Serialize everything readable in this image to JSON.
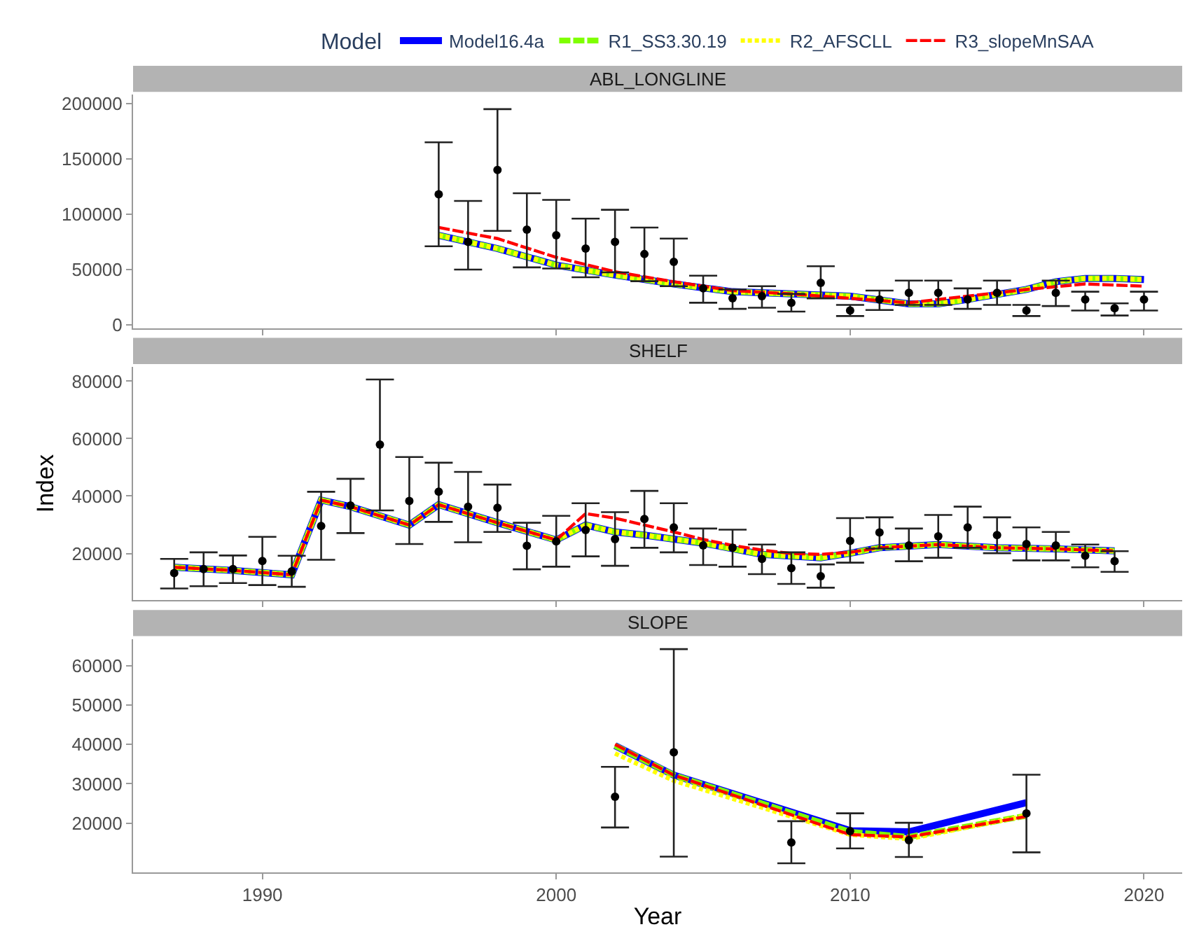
{
  "chart_data": [
    {
      "type": "line",
      "title": "ABL_LONGLINE",
      "xlim": [
        1985.6,
        2021.3
      ],
      "xticks": [
        1990,
        2000,
        2010,
        2020
      ],
      "ylim": [
        -3000,
        208000
      ],
      "yticks": [
        0,
        50000,
        100000,
        150000,
        200000
      ],
      "tick_labels": "y",
      "legend": "top",
      "legend_title": "Model",
      "series": [
        {
          "type": "scatter",
          "marker": "circle",
          "color": "#000000",
          "x": [
            1996,
            1997,
            1998,
            1999,
            2000,
            2001,
            2002,
            2003,
            2004,
            2005,
            2006,
            2007,
            2008,
            2009,
            2010,
            2011,
            2012,
            2013,
            2014,
            2015,
            2016,
            2017,
            2018,
            2019,
            2020
          ],
          "values": [
            118000,
            75000,
            140000,
            86000,
            81000,
            69000,
            75000,
            64000,
            57000,
            33000,
            24000,
            26000,
            20000,
            38000,
            13000,
            23000,
            29000,
            29000,
            23000,
            29000,
            13000,
            29000,
            23000,
            15000,
            23000
          ],
          "errors": [
            [
              71000,
              165000
            ],
            [
              50000,
              112000
            ],
            [
              85000,
              195000
            ],
            [
              52000,
              119000
            ],
            [
              51000,
              113000
            ],
            [
              43000,
              96000
            ],
            [
              47500,
              104000
            ],
            [
              39500,
              88000
            ],
            [
              35000,
              78000
            ],
            [
              20000,
              44500
            ],
            [
              14500,
              32000
            ],
            [
              15500,
              35000
            ],
            [
              12000,
              28000
            ],
            [
              24000,
              53000
            ],
            [
              8000,
              18000
            ],
            [
              13500,
              31000
            ],
            [
              18000,
              40000
            ],
            [
              18000,
              40000
            ],
            [
              14500,
              33000
            ],
            [
              18000,
              40000
            ],
            [
              8000,
              18000
            ],
            [
              17000,
              40000
            ],
            [
              13000,
              30000
            ],
            [
              8500,
              19500
            ],
            [
              13000,
              30000
            ]
          ]
        },
        {
          "name": "Model16.4a",
          "color": "#0000ff",
          "line_style": "solid",
          "x": [
            1996,
            1998,
            2000,
            2002,
            2004,
            2006,
            2008,
            2010,
            2012,
            2013,
            2014,
            2016,
            2017,
            2018,
            2019,
            2020
          ],
          "values": [
            81000,
            69000,
            54000,
            45000,
            37000,
            30000,
            28000,
            26000,
            19000,
            19000,
            23000,
            32000,
            39000,
            42000,
            42000,
            41000
          ]
        },
        {
          "name": "R1_SS3.30.19",
          "color": "#7fff00",
          "line_style": "dashed",
          "x": [
            1996,
            1998,
            2000,
            2002,
            2004,
            2006,
            2008,
            2010,
            2012,
            2013,
            2014,
            2016,
            2017,
            2018,
            2019,
            2020
          ],
          "values": [
            81000,
            69000,
            54000,
            45000,
            37000,
            30000,
            28000,
            26000,
            19000,
            19000,
            23000,
            32000,
            39000,
            42000,
            42000,
            41000
          ]
        },
        {
          "name": "R2_AFSCLL",
          "color": "#ffff00",
          "line_style": "dotted",
          "x": [
            1996,
            1998,
            2000,
            2002,
            2004,
            2006,
            2008,
            2010,
            2012,
            2013,
            2014,
            2016,
            2017,
            2018,
            2019,
            2020
          ],
          "values": [
            81000,
            69000,
            54000,
            45000,
            37000,
            30000,
            28000,
            26000,
            19000,
            19000,
            23000,
            32000,
            39000,
            42000,
            42000,
            41000
          ]
        },
        {
          "name": "R3_slopeMnSAA",
          "color": "#ff0000",
          "line_style": "dashed",
          "x": [
            1996,
            1998,
            2000,
            2002,
            2004,
            2006,
            2008,
            2010,
            2012,
            2014,
            2016,
            2018,
            2020
          ],
          "values": [
            88000,
            78000,
            61000,
            48000,
            39000,
            31000,
            28000,
            24000,
            20000,
            26000,
            32000,
            37000,
            35000
          ]
        }
      ]
    },
    {
      "type": "line",
      "title": "SHELF",
      "ylabel": "Index",
      "xlim": [
        1985.6,
        2021.3
      ],
      "xticks": [
        1990,
        2000,
        2010,
        2020
      ],
      "ylim": [
        3700,
        85000
      ],
      "yticks": [
        20000,
        40000,
        60000,
        80000
      ],
      "tick_labels": "y",
      "series": [
        {
          "type": "scatter",
          "marker": "circle",
          "color": "#000000",
          "x": [
            1987,
            1988,
            1989,
            1990,
            1991,
            1992,
            1993,
            1994,
            1995,
            1996,
            1997,
            1998,
            1999,
            2000,
            2001,
            2002,
            2003,
            2004,
            2005,
            2006,
            2007,
            2008,
            2009,
            2010,
            2011,
            2012,
            2013,
            2014,
            2015,
            2016,
            2017,
            2018,
            2019
          ],
          "values": [
            13200,
            14600,
            14600,
            17400,
            13800,
            29600,
            36700,
            57900,
            38300,
            41500,
            36300,
            35900,
            22700,
            24200,
            28200,
            25000,
            32000,
            29100,
            22800,
            22000,
            18100,
            14900,
            12100,
            24400,
            27300,
            22800,
            26000,
            29100,
            26400,
            23300,
            22800,
            19200,
            17300
          ],
          "errors": [
            [
              7800,
              18100
            ],
            [
              8600,
              20400
            ],
            [
              9700,
              19300
            ],
            [
              9000,
              25800
            ],
            [
              8400,
              19200
            ],
            [
              17800,
              41500
            ],
            [
              27100,
              46000
            ],
            [
              35000,
              80600
            ],
            [
              23300,
              53600
            ],
            [
              31000,
              51600
            ],
            [
              23900,
              48400
            ],
            [
              27500,
              44000
            ],
            [
              14500,
              30700
            ],
            [
              15400,
              33100
            ],
            [
              19000,
              37500
            ],
            [
              15700,
              34400
            ],
            [
              22000,
              41800
            ],
            [
              20400,
              37500
            ],
            [
              16000,
              28700
            ],
            [
              15400,
              28300
            ],
            [
              12800,
              23100
            ],
            [
              9400,
              20400
            ],
            [
              8100,
              16200
            ],
            [
              16800,
              32300
            ],
            [
              21700,
              32600
            ],
            [
              17300,
              28700
            ],
            [
              18500,
              33400
            ],
            [
              22000,
              36300
            ],
            [
              20100,
              32600
            ],
            [
              17600,
              29100
            ],
            [
              17600,
              27500
            ],
            [
              15200,
              23100
            ],
            [
              13600,
              20800
            ]
          ]
        },
        {
          "color": "#0000ff",
          "line_style": "solid",
          "x": [
            1987,
            1989,
            1991,
            1992,
            1993,
            1995,
            1996,
            1998,
            2000,
            2001,
            2002,
            2003,
            2005,
            2007,
            2009,
            2010,
            2011,
            2013,
            2015,
            2017,
            2019
          ],
          "values": [
            15200,
            14100,
            12600,
            38600,
            36300,
            29900,
            37000,
            30700,
            24700,
            29900,
            27500,
            26400,
            23600,
            19700,
            18500,
            20100,
            22000,
            23100,
            22000,
            21600,
            20900
          ]
        },
        {
          "color": "#7fff00",
          "line_style": "dashed",
          "x": [
            1987,
            1989,
            1991,
            1992,
            1993,
            1995,
            1996,
            1998,
            2000,
            2001,
            2002,
            2003,
            2005,
            2007,
            2009,
            2010,
            2011,
            2013,
            2015,
            2017,
            2019
          ],
          "values": [
            15200,
            14100,
            12600,
            38600,
            36300,
            29900,
            37000,
            30700,
            24700,
            29900,
            27500,
            26400,
            23600,
            19700,
            18500,
            20100,
            22000,
            23100,
            22000,
            21600,
            20900
          ]
        },
        {
          "color": "#ffff00",
          "line_style": "dotted",
          "x": [
            1987,
            1989,
            1991,
            1992,
            1993,
            1995,
            1996,
            1998,
            2000,
            2001,
            2002,
            2003,
            2005,
            2007,
            2009,
            2010,
            2011,
            2013,
            2015,
            2017,
            2019
          ],
          "values": [
            15200,
            14100,
            12600,
            38600,
            36300,
            29900,
            37000,
            30700,
            24700,
            29900,
            27500,
            26400,
            23600,
            19700,
            18500,
            20100,
            22000,
            23100,
            22000,
            21600,
            20900
          ]
        },
        {
          "color": "#ff0000",
          "line_style": "dashed",
          "x": [
            1987,
            1989,
            1991,
            1992,
            1993,
            1995,
            1996,
            1998,
            2000,
            2001,
            2002,
            2003,
            2004,
            2005,
            2006,
            2007,
            2008,
            2009,
            2010,
            2011,
            2013,
            2015,
            2017,
            2019
          ],
          "values": [
            15200,
            14100,
            12600,
            38600,
            36300,
            29900,
            37000,
            30700,
            24700,
            33900,
            32300,
            29900,
            27500,
            24900,
            22800,
            21200,
            20000,
            19700,
            20400,
            22000,
            23100,
            22000,
            21600,
            20900
          ]
        }
      ]
    },
    {
      "type": "line",
      "title": "SLOPE",
      "xlabel": "Year",
      "xlim": [
        1985.6,
        2021.3
      ],
      "xticks": [
        1990,
        2000,
        2010,
        2020
      ],
      "ylim": [
        7500,
        66800
      ],
      "yticks": [
        20000,
        30000,
        40000,
        50000,
        60000
      ],
      "series": [
        {
          "type": "scatter",
          "marker": "circle",
          "color": "#000000",
          "x": [
            2002,
            2004,
            2008,
            2010,
            2012,
            2016
          ],
          "values": [
            26700,
            38000,
            15100,
            18000,
            15700,
            22500
          ],
          "errors": [
            [
              18900,
              34300
            ],
            [
              11500,
              64200
            ],
            [
              9800,
              20500
            ],
            [
              13600,
              22500
            ],
            [
              11400,
              20100
            ],
            [
              12600,
              32300
            ]
          ]
        },
        {
          "color": "#0000ff",
          "line_style": "solid",
          "x": [
            2002,
            2004,
            2010,
            2012,
            2016
          ],
          "values": [
            39700,
            32200,
            18100,
            17800,
            25200
          ]
        },
        {
          "color": "#7fff00",
          "line_style": "dashed",
          "x": [
            2002,
            2004,
            2010,
            2012,
            2016
          ],
          "values": [
            39700,
            32200,
            17800,
            16500,
            21900
          ]
        },
        {
          "color": "#ffff00",
          "line_style": "dotted",
          "x": [
            2002,
            2004,
            2010,
            2012,
            2016
          ],
          "values": [
            37700,
            30800,
            17100,
            16000,
            21900
          ]
        },
        {
          "color": "#ff0000",
          "line_style": "dashed",
          "x": [
            2002,
            2004,
            2010,
            2012,
            2016
          ],
          "values": [
            40000,
            32200,
            17100,
            16500,
            21700
          ]
        }
      ]
    }
  ]
}
